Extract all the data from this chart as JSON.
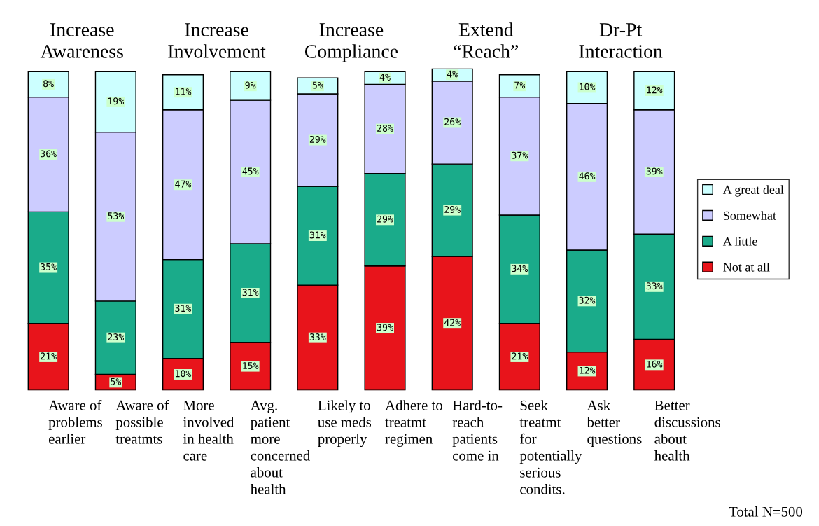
{
  "chart_data": {
    "type": "bar",
    "stacked": true,
    "legend": "right",
    "categories": [
      "Aware of problems earlier",
      "Aware of possible treatmts",
      "More involved in health care",
      "Avg. patient more concerned about health",
      "Likely to use meds properly",
      "Adhere to treatmt regimen",
      "Hard-to-reach patients come in",
      "Seek treatmt for potentially serious condits.",
      "Ask better questions",
      "Better discussions about health"
    ],
    "series": [
      {
        "name": "Not at all",
        "color": "#e8141b",
        "values": [
          21,
          5,
          10,
          15,
          33,
          39,
          42,
          21,
          12,
          16
        ],
        "value_labels": [
          "21%",
          "5%",
          "10%",
          "15%",
          "33%",
          "39%",
          "42%",
          "21%",
          "12%",
          "16%"
        ]
      },
      {
        "name": "A little",
        "color": "#1aab8a",
        "values": [
          35,
          23,
          31,
          31,
          31,
          29,
          29,
          34,
          32,
          33
        ],
        "value_labels": [
          "35%",
          "23%",
          "31%",
          "31%",
          "31%",
          "29%",
          "29%",
          "34%",
          "32%",
          "33%"
        ]
      },
      {
        "name": "Somewhat",
        "color": "#ccccff",
        "values": [
          36,
          53,
          47,
          45,
          29,
          28,
          26,
          37,
          46,
          39
        ],
        "value_labels": [
          "36%",
          "53%",
          "47%",
          "45%",
          "29%",
          "28%",
          "26%",
          "37%",
          "46%",
          "39%"
        ]
      },
      {
        "name": "A great deal",
        "color": "#ccffff",
        "values": [
          8,
          19,
          11,
          9,
          5,
          4,
          4,
          7,
          10,
          12
        ],
        "value_labels": [
          "8%",
          "19%",
          "11%",
          "9%",
          "5%",
          "4%",
          "4%",
          "7%",
          "10%",
          "12%"
        ]
      }
    ],
    "annotations": [
      "Increase Awareness",
      "Increase Involvement",
      "Increase Compliance",
      "Extend “Reach”",
      "Dr-Pt Interaction",
      "Total N=500"
    ]
  }
}
